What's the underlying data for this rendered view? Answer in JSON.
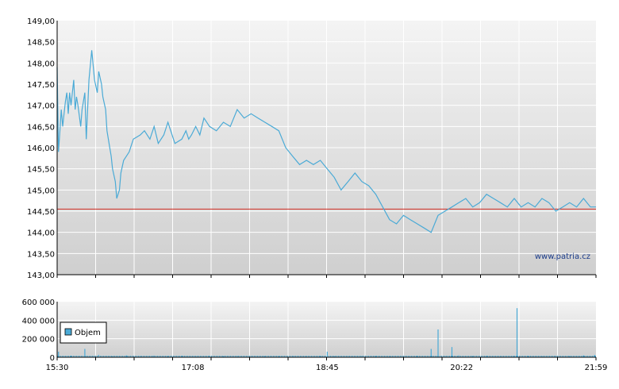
{
  "watermark": "www.patria.cz",
  "colors": {
    "price_line": "#4aaad6",
    "reference_line": "#d02a20",
    "volume_bar": "#4aaad6",
    "grid": "#ffffff",
    "panel_top": "#f4f4f4",
    "panel_bottom": "#cfcfcf",
    "axis": "#000000"
  },
  "chart_data": [
    {
      "type": "line",
      "title": "",
      "xlabel": "",
      "ylabel": "",
      "ylim": [
        143.0,
        149.0
      ],
      "y_ticks": [
        "149,00",
        "148,50",
        "148,00",
        "147,50",
        "147,00",
        "146,50",
        "146,00",
        "145,50",
        "145,00",
        "144,50",
        "144,00",
        "143,50",
        "143,00"
      ],
      "x_ticks": [
        "15:30",
        "17:08",
        "18:45",
        "20:22",
        "21:59"
      ],
      "reference_line": 144.55,
      "grid": true,
      "series": [
        {
          "x": [
            "15:30",
            "15:31",
            "15:32",
            "15:33",
            "15:34",
            "15:35",
            "15:36",
            "15:37",
            "15:38",
            "15:39",
            "15:40",
            "15:42",
            "15:43",
            "15:44",
            "15:45",
            "15:47",
            "15:48",
            "15:50",
            "15:51",
            "15:53",
            "15:55",
            "15:57",
            "15:59",
            "16:00",
            "16:02",
            "16:03",
            "16:05",
            "16:06",
            "16:08",
            "16:09",
            "16:10",
            "16:12",
            "16:13",
            "16:15",
            "16:16",
            "16:18",
            "16:20",
            "16:22",
            "16:25",
            "16:30",
            "16:33",
            "16:37",
            "16:40",
            "16:43",
            "16:47",
            "16:50",
            "16:55",
            "17:00",
            "17:03",
            "17:05",
            "17:07",
            "17:10",
            "17:13",
            "17:16",
            "17:20",
            "17:25",
            "17:30",
            "17:35",
            "17:40",
            "17:45",
            "17:50",
            "17:55",
            "18:00",
            "18:05",
            "18:10",
            "18:15",
            "18:20",
            "18:25",
            "18:30",
            "18:35",
            "18:40",
            "18:45",
            "18:50",
            "18:55",
            "19:00",
            "19:05",
            "19:10",
            "19:15",
            "19:20",
            "19:25",
            "19:30",
            "19:35",
            "19:40",
            "19:45",
            "19:50",
            "19:55",
            "20:00",
            "20:05",
            "20:10",
            "20:15",
            "20:20",
            "20:25",
            "20:30",
            "20:35",
            "20:40",
            "20:45",
            "20:50",
            "20:55",
            "21:00",
            "21:05",
            "21:10",
            "21:15",
            "21:20",
            "21:25",
            "21:30",
            "21:35",
            "21:40",
            "21:45",
            "21:50",
            "21:55",
            "21:59"
          ],
          "values": [
            147.9,
            145.9,
            146.4,
            146.9,
            146.5,
            146.8,
            147.1,
            147.3,
            146.8,
            147.3,
            147.0,
            147.6,
            146.9,
            147.2,
            147.0,
            146.5,
            146.9,
            147.3,
            146.2,
            147.6,
            148.3,
            147.6,
            147.3,
            147.8,
            147.5,
            147.2,
            146.9,
            146.4,
            146.0,
            145.8,
            145.5,
            145.2,
            144.8,
            145.0,
            145.4,
            145.7,
            145.8,
            145.9,
            146.2,
            146.3,
            146.4,
            146.2,
            146.5,
            146.1,
            146.3,
            146.6,
            146.1,
            146.2,
            146.4,
            146.2,
            146.3,
            146.5,
            146.3,
            146.7,
            146.5,
            146.4,
            146.6,
            146.5,
            146.9,
            146.7,
            146.8,
            146.7,
            146.6,
            146.5,
            146.4,
            146.0,
            145.8,
            145.6,
            145.7,
            145.6,
            145.7,
            145.5,
            145.3,
            145.0,
            145.2,
            145.4,
            145.2,
            145.1,
            144.9,
            144.6,
            144.3,
            144.2,
            144.4,
            144.3,
            144.2,
            144.1,
            144.0,
            144.4,
            144.5,
            144.6,
            144.7,
            144.8,
            144.6,
            144.7,
            144.9,
            144.8,
            144.7,
            144.6,
            144.8,
            144.6,
            144.7,
            144.6,
            144.8,
            144.7,
            144.5,
            144.6,
            144.7,
            144.6,
            144.8,
            144.6,
            144.6
          ]
        }
      ]
    },
    {
      "type": "bar",
      "title": "",
      "xlabel": "",
      "ylabel": "",
      "ylim": [
        0,
        600000
      ],
      "y_ticks": [
        "600 000",
        "400 000",
        "200 000",
        "0"
      ],
      "x_ticks": [
        "15:30",
        "17:08",
        "18:45",
        "20:22",
        "21:59"
      ],
      "grid": true,
      "legend": "top-left",
      "series": [
        {
          "name": "Objem",
          "x": [
            "15:31",
            "15:40",
            "15:50",
            "16:00",
            "16:10",
            "16:20",
            "16:30",
            "16:40",
            "16:50",
            "17:00",
            "17:10",
            "17:20",
            "17:30",
            "17:40",
            "17:50",
            "18:00",
            "18:10",
            "18:20",
            "18:30",
            "18:40",
            "18:45",
            "18:50",
            "19:00",
            "19:10",
            "19:20",
            "19:30",
            "19:40",
            "19:50",
            "20:00",
            "20:05",
            "20:10",
            "20:15",
            "20:20",
            "20:30",
            "20:40",
            "20:50",
            "21:00",
            "21:02",
            "21:10",
            "21:20",
            "21:30",
            "21:40",
            "21:50",
            "21:58"
          ],
          "values": [
            60000,
            15000,
            90000,
            25000,
            8000,
            20000,
            12000,
            18000,
            10000,
            16000,
            9000,
            14000,
            10000,
            12000,
            8000,
            11000,
            9000,
            13000,
            10000,
            12000,
            60000,
            10000,
            9000,
            11000,
            12000,
            10000,
            8000,
            14000,
            90000,
            300000,
            10000,
            110000,
            20000,
            12000,
            15000,
            10000,
            14000,
            530000,
            12000,
            10000,
            16000,
            12000,
            20000,
            25000
          ]
        }
      ]
    }
  ]
}
